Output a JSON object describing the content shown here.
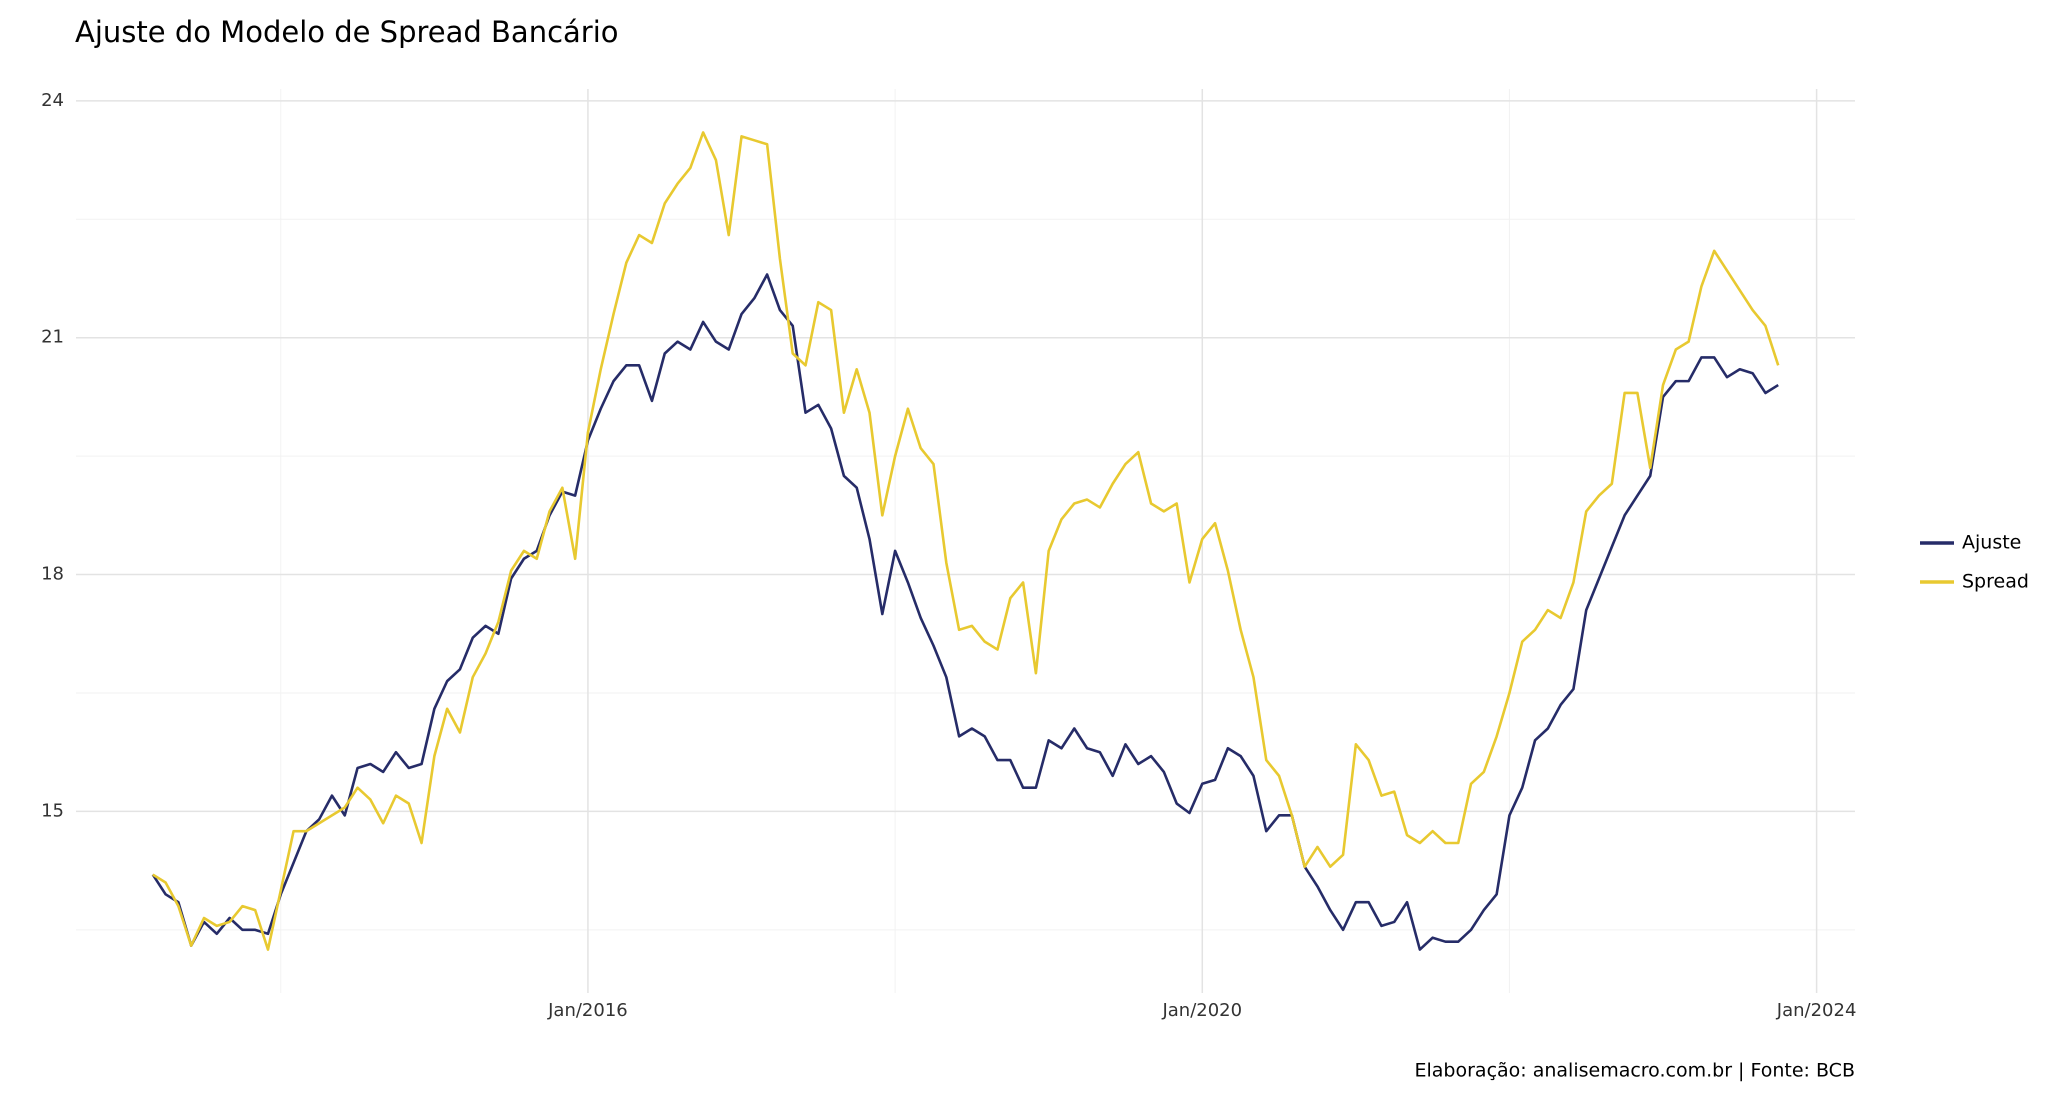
{
  "chart_data": {
    "type": "line",
    "title": "Ajuste do Modelo de Spread Bancário",
    "caption": "Elaboração: analisemacro.com.br | Fonte: BCB",
    "x": [
      "2013-03",
      "2013-04",
      "2013-05",
      "2013-06",
      "2013-07",
      "2013-08",
      "2013-09",
      "2013-10",
      "2013-11",
      "2013-12",
      "2014-01",
      "2014-02",
      "2014-03",
      "2014-04",
      "2014-05",
      "2014-06",
      "2014-07",
      "2014-08",
      "2014-09",
      "2014-10",
      "2014-11",
      "2014-12",
      "2015-01",
      "2015-02",
      "2015-03",
      "2015-04",
      "2015-05",
      "2015-06",
      "2015-07",
      "2015-08",
      "2015-09",
      "2015-10",
      "2015-11",
      "2015-12",
      "2016-01",
      "2016-02",
      "2016-03",
      "2016-04",
      "2016-05",
      "2016-06",
      "2016-07",
      "2016-08",
      "2016-09",
      "2016-10",
      "2016-11",
      "2016-12",
      "2017-01",
      "2017-02",
      "2017-03",
      "2017-04",
      "2017-05",
      "2017-06",
      "2017-07",
      "2017-08",
      "2017-09",
      "2017-10",
      "2017-11",
      "2017-12",
      "2018-01",
      "2018-02",
      "2018-03",
      "2018-04",
      "2018-05",
      "2018-06",
      "2018-07",
      "2018-08",
      "2018-09",
      "2018-10",
      "2018-11",
      "2018-12",
      "2019-01",
      "2019-02",
      "2019-03",
      "2019-04",
      "2019-05",
      "2019-06",
      "2019-07",
      "2019-08",
      "2019-09",
      "2019-10",
      "2019-11",
      "2019-12",
      "2020-01",
      "2020-02",
      "2020-03",
      "2020-04",
      "2020-05",
      "2020-06",
      "2020-07",
      "2020-08",
      "2020-09",
      "2020-10",
      "2020-11",
      "2020-12",
      "2021-01",
      "2021-02",
      "2021-03",
      "2021-04",
      "2021-05",
      "2021-06",
      "2021-07",
      "2021-08",
      "2021-09",
      "2021-10",
      "2021-11",
      "2021-12",
      "2022-01",
      "2022-02",
      "2022-03",
      "2022-04",
      "2022-05",
      "2022-06",
      "2022-07",
      "2022-08",
      "2022-09",
      "2022-10",
      "2022-11",
      "2022-12",
      "2023-01",
      "2023-02",
      "2023-03",
      "2023-04",
      "2023-05",
      "2023-06",
      "2023-07",
      "2023-08",
      "2023-09",
      "2023-10"
    ],
    "series": [
      {
        "name": "Ajuste",
        "color": "#262c68",
        "values": [
          14.2,
          13.95,
          13.85,
          13.3,
          13.6,
          13.45,
          13.65,
          13.5,
          13.5,
          13.45,
          13.95,
          14.35,
          14.75,
          14.9,
          15.2,
          14.95,
          15.55,
          15.6,
          15.5,
          15.75,
          15.55,
          15.6,
          16.3,
          16.65,
          16.8,
          17.2,
          17.35,
          17.25,
          17.95,
          18.2,
          18.3,
          18.75,
          19.05,
          19.0,
          19.7,
          20.1,
          20.45,
          20.65,
          20.65,
          20.2,
          20.8,
          20.95,
          20.85,
          21.2,
          20.95,
          20.85,
          21.3,
          21.5,
          21.8,
          21.35,
          21.15,
          20.05,
          20.15,
          19.85,
          19.25,
          19.1,
          18.45,
          17.5,
          18.3,
          17.9,
          17.45,
          17.1,
          16.7,
          15.95,
          16.05,
          15.95,
          15.65,
          15.65,
          15.3,
          15.3,
          15.9,
          15.8,
          16.05,
          15.8,
          15.75,
          15.45,
          15.85,
          15.6,
          15.7,
          15.5,
          15.1,
          14.98,
          15.35,
          15.4,
          15.8,
          15.7,
          15.45,
          14.75,
          14.95,
          14.95,
          14.3,
          14.05,
          13.75,
          13.5,
          13.85,
          13.85,
          13.55,
          13.6,
          13.85,
          13.25,
          13.4,
          13.35,
          13.35,
          13.5,
          13.75,
          13.95,
          14.95,
          15.3,
          15.9,
          16.05,
          16.35,
          16.55,
          17.55,
          17.95,
          18.35,
          18.75,
          19.0,
          19.25,
          20.25,
          20.45,
          20.45,
          20.75,
          20.75,
          20.5,
          20.6,
          20.55,
          20.3,
          20.4
        ]
      },
      {
        "name": "Spread",
        "color": "#e8c930",
        "values": [
          14.2,
          14.1,
          13.8,
          13.3,
          13.65,
          13.55,
          13.6,
          13.8,
          13.75,
          13.25,
          14.0,
          14.75,
          14.75,
          14.85,
          14.95,
          15.05,
          15.3,
          15.15,
          14.85,
          15.2,
          15.1,
          14.6,
          15.7,
          16.3,
          16.0,
          16.7,
          17.0,
          17.4,
          18.05,
          18.3,
          18.2,
          18.8,
          19.1,
          18.2,
          19.8,
          20.6,
          21.3,
          21.95,
          22.3,
          22.2,
          22.7,
          22.95,
          23.15,
          23.6,
          23.25,
          22.3,
          23.55,
          23.5,
          23.45,
          22.0,
          20.8,
          20.65,
          21.45,
          21.35,
          20.05,
          20.6,
          20.05,
          18.75,
          19.5,
          20.1,
          19.6,
          19.4,
          18.15,
          17.3,
          17.35,
          17.15,
          17.05,
          17.7,
          17.9,
          16.75,
          18.3,
          18.7,
          18.9,
          18.95,
          18.85,
          19.15,
          19.4,
          19.55,
          18.9,
          18.8,
          18.9,
          17.9,
          18.45,
          18.65,
          18.05,
          17.3,
          16.7,
          15.65,
          15.45,
          14.95,
          14.3,
          14.55,
          14.3,
          14.45,
          15.85,
          15.65,
          15.2,
          15.25,
          14.7,
          14.6,
          14.75,
          14.6,
          14.6,
          15.35,
          15.5,
          15.95,
          16.5,
          17.15,
          17.3,
          17.55,
          17.45,
          17.9,
          18.8,
          19.0,
          19.15,
          20.3,
          20.3,
          19.35,
          20.4,
          20.85,
          20.95,
          21.65,
          22.1,
          21.85,
          21.6,
          21.35,
          21.15,
          20.65
        ]
      }
    ],
    "xlim": [
      "2012-09",
      "2024-04"
    ],
    "xticks": [
      {
        "value": "2016-01",
        "label": "Jan/2016"
      },
      {
        "value": "2020-01",
        "label": "Jan/2020"
      },
      {
        "value": "2024-01",
        "label": "Jan/2024"
      }
    ],
    "minor_xticks": [
      "2014-01",
      "2018-01",
      "2022-01"
    ],
    "ylim": [
      12.7,
      24.15
    ],
    "yticks": [
      15,
      18,
      21,
      24
    ],
    "minor_yticks": [
      13.5,
      16.5,
      19.5,
      22.5
    ],
    "grid": true,
    "legend": "right"
  }
}
